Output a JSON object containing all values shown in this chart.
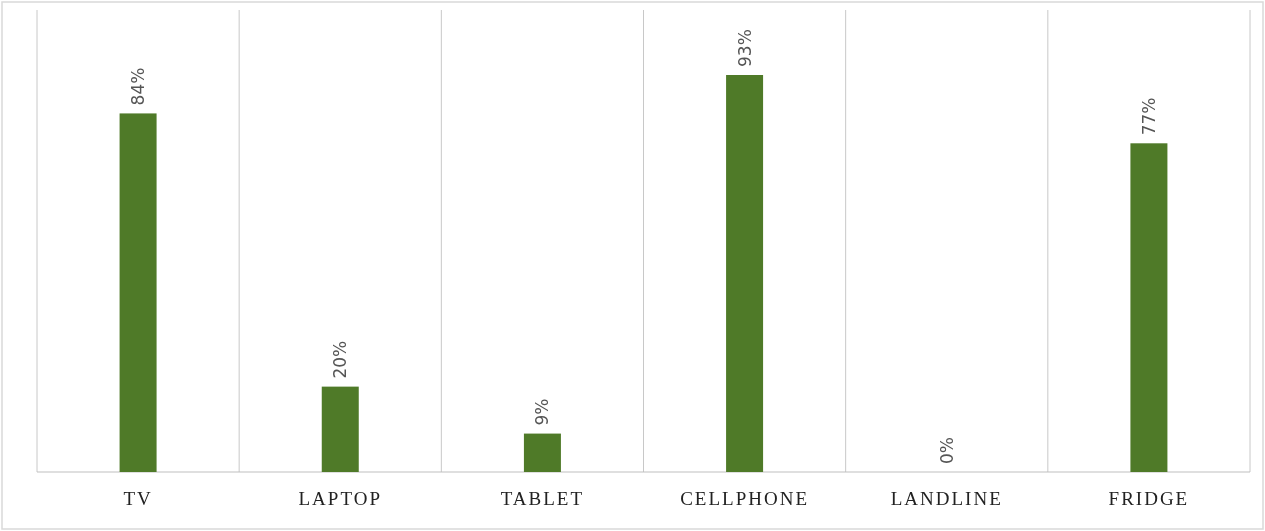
{
  "chart_data": {
    "type": "bar",
    "categories": [
      "TV",
      "LAPTOP",
      "TABLET",
      "CELLPHONE",
      "LANDLINE",
      "FRIDGE"
    ],
    "values": [
      84,
      20,
      9,
      93,
      0,
      77
    ],
    "value_labels": [
      "84%",
      "20%",
      "9%",
      "93%",
      "0%",
      "77%"
    ],
    "color": "#4f7a28",
    "grid": "x"
  }
}
